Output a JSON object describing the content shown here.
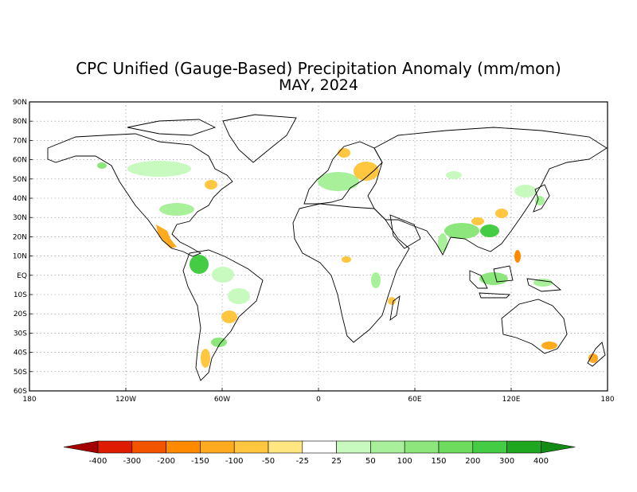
{
  "title": "CPC Unified (Gauge-Based) Precipitation Anomaly (mm/mon)",
  "subtitle": "MAY, 2024",
  "lat_ticks": [
    "90N",
    "80N",
    "70N",
    "60N",
    "50N",
    "40N",
    "30N",
    "20N",
    "10N",
    "EQ",
    "10S",
    "20S",
    "30S",
    "40S",
    "50S",
    "60S"
  ],
  "lon_ticks": [
    "180",
    "120W",
    "60W",
    "0",
    "60E",
    "120E",
    "180"
  ],
  "colorbar": {
    "labels": [
      "-400",
      "-300",
      "-200",
      "-150",
      "-100",
      "-50",
      "-25",
      "25",
      "50",
      "100",
      "150",
      "200",
      "300",
      "400"
    ],
    "colors": [
      "#a50000",
      "#dd1c00",
      "#f25400",
      "#ff8a00",
      "#ffaa1f",
      "#ffc640",
      "#ffe680",
      "#ffffff",
      "#c8fac0",
      "#a8f09a",
      "#8ce67c",
      "#6edb5e",
      "#44cc44",
      "#1fa81f",
      "#138a13"
    ]
  },
  "colors": {
    "dry_strong": "#ff9900",
    "dry": "#ffc640",
    "dry_light": "#ffe680",
    "wet_light": "#c8fac0",
    "wet": "#8ce67c",
    "wet_strong": "#44cc44",
    "coast": "#000000",
    "grid": "#888888"
  }
}
